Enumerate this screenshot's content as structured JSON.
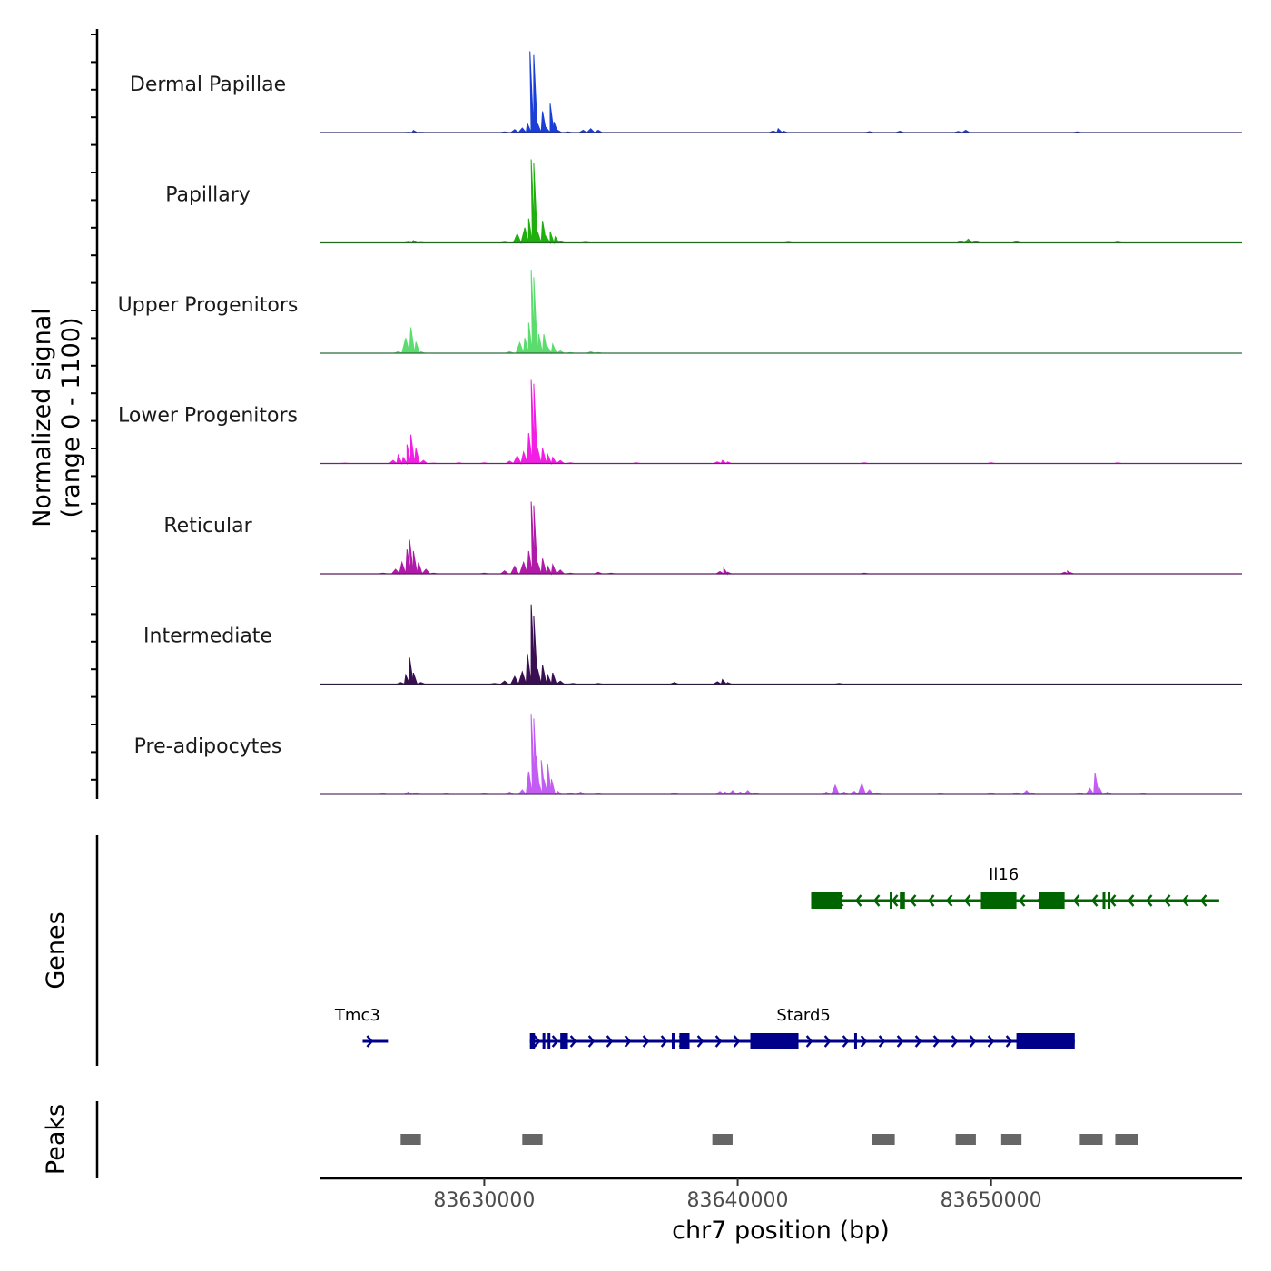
{
  "chart_data": {
    "type": "area",
    "title": "",
    "ylabel_line1": "Normalized signal",
    "ylabel_line2": "(range 0 - 1100)",
    "yrange": [
      0,
      1100
    ],
    "xlabel": "chr7 position (bp)",
    "xlim": [
      83623500,
      83659900
    ],
    "xticks": [
      83630000,
      83640000,
      83650000
    ],
    "xtick_labels": [
      "83630000",
      "83640000",
      "83650000"
    ],
    "tracks": [
      {
        "name": "Dermal Papillae",
        "color": "#1a3fd6",
        "line_color": "#2a2a6a",
        "points": [
          [
            83627000,
            2
          ],
          [
            83627200,
            28
          ],
          [
            83627500,
            2
          ],
          [
            83630800,
            8
          ],
          [
            83631200,
            40
          ],
          [
            83631500,
            60
          ],
          [
            83631700,
            120
          ],
          [
            83631800,
            1070
          ],
          [
            83631950,
            1020
          ],
          [
            83632100,
            120
          ],
          [
            83632300,
            280
          ],
          [
            83632450,
            60
          ],
          [
            83632600,
            380
          ],
          [
            83632750,
            140
          ],
          [
            83632900,
            30
          ],
          [
            83633300,
            8
          ],
          [
            83633900,
            30
          ],
          [
            83634200,
            50
          ],
          [
            83634500,
            30
          ],
          [
            83641400,
            20
          ],
          [
            83641600,
            50
          ],
          [
            83641800,
            20
          ],
          [
            83645200,
            12
          ],
          [
            83646400,
            18
          ],
          [
            83648700,
            14
          ],
          [
            83649000,
            30
          ],
          [
            83653400,
            10
          ]
        ]
      },
      {
        "name": "Papillary",
        "color": "#1faf0f",
        "line_color": "#1f6a1f",
        "points": [
          [
            83627000,
            10
          ],
          [
            83627200,
            30
          ],
          [
            83627500,
            5
          ],
          [
            83630800,
            10
          ],
          [
            83631300,
            120
          ],
          [
            83631600,
            200
          ],
          [
            83631750,
            320
          ],
          [
            83631850,
            1100
          ],
          [
            83631950,
            1050
          ],
          [
            83632100,
            150
          ],
          [
            83632300,
            290
          ],
          [
            83632450,
            80
          ],
          [
            83632600,
            150
          ],
          [
            83632800,
            80
          ],
          [
            83633000,
            20
          ],
          [
            83634000,
            10
          ],
          [
            83642000,
            10
          ],
          [
            83648800,
            20
          ],
          [
            83649100,
            50
          ],
          [
            83649400,
            20
          ],
          [
            83651000,
            15
          ],
          [
            83655000,
            12
          ]
        ]
      },
      {
        "name": "Upper Progenitors",
        "color": "#5cdb6e",
        "line_color": "#2a6a3a",
        "points": [
          [
            83626600,
            20
          ],
          [
            83626900,
            200
          ],
          [
            83627100,
            340
          ],
          [
            83627300,
            150
          ],
          [
            83627500,
            20
          ],
          [
            83631000,
            20
          ],
          [
            83631400,
            140
          ],
          [
            83631600,
            200
          ],
          [
            83631750,
            400
          ],
          [
            83631850,
            1100
          ],
          [
            83631950,
            1000
          ],
          [
            83632150,
            250
          ],
          [
            83632350,
            250
          ],
          [
            83632500,
            80
          ],
          [
            83632700,
            120
          ],
          [
            83633000,
            30
          ],
          [
            83633400,
            10
          ],
          [
            83634200,
            20
          ],
          [
            83634500,
            10
          ]
        ]
      },
      {
        "name": "Lower Progenitors",
        "color": "#f21ee4",
        "line_color": "#6a2a6a",
        "points": [
          [
            83624500,
            5
          ],
          [
            83626400,
            40
          ],
          [
            83626600,
            110
          ],
          [
            83626800,
            80
          ],
          [
            83626950,
            250
          ],
          [
            83627100,
            380
          ],
          [
            83627300,
            200
          ],
          [
            83627600,
            40
          ],
          [
            83628000,
            5
          ],
          [
            83629000,
            8
          ],
          [
            83630000,
            10
          ],
          [
            83631000,
            30
          ],
          [
            83631300,
            100
          ],
          [
            83631550,
            150
          ],
          [
            83631750,
            400
          ],
          [
            83631850,
            1100
          ],
          [
            83631950,
            1050
          ],
          [
            83632100,
            200
          ],
          [
            83632300,
            200
          ],
          [
            83632500,
            120
          ],
          [
            83632700,
            80
          ],
          [
            83633000,
            40
          ],
          [
            83633400,
            10
          ],
          [
            83636000,
            10
          ],
          [
            83639200,
            20
          ],
          [
            83639400,
            40
          ],
          [
            83639600,
            20
          ],
          [
            83645000,
            10
          ],
          [
            83650000,
            8
          ],
          [
            83655000,
            8
          ]
        ]
      },
      {
        "name": "Reticular",
        "color": "#b01aa8",
        "line_color": "#5a1a5a",
        "points": [
          [
            83626000,
            10
          ],
          [
            83626500,
            60
          ],
          [
            83626750,
            150
          ],
          [
            83626950,
            320
          ],
          [
            83627050,
            450
          ],
          [
            83627200,
            300
          ],
          [
            83627400,
            150
          ],
          [
            83627700,
            60
          ],
          [
            83628000,
            10
          ],
          [
            83630000,
            10
          ],
          [
            83630800,
            40
          ],
          [
            83631200,
            100
          ],
          [
            83631550,
            150
          ],
          [
            83631750,
            300
          ],
          [
            83631850,
            950
          ],
          [
            83631950,
            900
          ],
          [
            83632100,
            150
          ],
          [
            83632300,
            200
          ],
          [
            83632500,
            100
          ],
          [
            83632700,
            120
          ],
          [
            83633000,
            50
          ],
          [
            83633400,
            10
          ],
          [
            83634500,
            20
          ],
          [
            83635000,
            10
          ],
          [
            83639300,
            30
          ],
          [
            83639450,
            70
          ],
          [
            83639600,
            20
          ],
          [
            83645000,
            10
          ],
          [
            83652900,
            20
          ],
          [
            83653000,
            40
          ],
          [
            83653100,
            20
          ]
        ]
      },
      {
        "name": "Intermediate",
        "color": "#3a0f52",
        "line_color": "#2a1a3a",
        "points": [
          [
            83626700,
            20
          ],
          [
            83626900,
            120
          ],
          [
            83627050,
            350
          ],
          [
            83627200,
            150
          ],
          [
            83627500,
            20
          ],
          [
            83630400,
            10
          ],
          [
            83630800,
            40
          ],
          [
            83631200,
            100
          ],
          [
            83631500,
            160
          ],
          [
            83631700,
            400
          ],
          [
            83631850,
            1050
          ],
          [
            83631950,
            900
          ],
          [
            83632100,
            200
          ],
          [
            83632300,
            250
          ],
          [
            83632500,
            120
          ],
          [
            83632700,
            150
          ],
          [
            83633000,
            40
          ],
          [
            83633500,
            10
          ],
          [
            83634500,
            10
          ],
          [
            83637500,
            20
          ],
          [
            83639200,
            30
          ],
          [
            83639400,
            60
          ],
          [
            83639600,
            20
          ],
          [
            83644000,
            10
          ]
        ]
      },
      {
        "name": "Pre-adipocytes",
        "color": "#c25cf2",
        "line_color": "#5a3a6a",
        "points": [
          [
            83626000,
            10
          ],
          [
            83627000,
            30
          ],
          [
            83627300,
            20
          ],
          [
            83628500,
            10
          ],
          [
            83630000,
            10
          ],
          [
            83631000,
            30
          ],
          [
            83631500,
            60
          ],
          [
            83631750,
            300
          ],
          [
            83631850,
            1050
          ],
          [
            83631950,
            1000
          ],
          [
            83632050,
            500
          ],
          [
            83632150,
            150
          ],
          [
            83632250,
            450
          ],
          [
            83632350,
            200
          ],
          [
            83632500,
            400
          ],
          [
            83632650,
            200
          ],
          [
            83632900,
            40
          ],
          [
            83633400,
            20
          ],
          [
            83633800,
            30
          ],
          [
            83634500,
            10
          ],
          [
            83637500,
            20
          ],
          [
            83639300,
            40
          ],
          [
            83639500,
            30
          ],
          [
            83639800,
            50
          ],
          [
            83640100,
            30
          ],
          [
            83640400,
            50
          ],
          [
            83640700,
            20
          ],
          [
            83643500,
            30
          ],
          [
            83643850,
            120
          ],
          [
            83644200,
            30
          ],
          [
            83644600,
            40
          ],
          [
            83644900,
            140
          ],
          [
            83645200,
            60
          ],
          [
            83645500,
            20
          ],
          [
            83648000,
            10
          ],
          [
            83650000,
            20
          ],
          [
            83651000,
            20
          ],
          [
            83651400,
            50
          ],
          [
            83651600,
            20
          ],
          [
            83653500,
            20
          ],
          [
            83653900,
            80
          ],
          [
            83654100,
            280
          ],
          [
            83654250,
            100
          ],
          [
            83654600,
            30
          ],
          [
            83656000,
            10
          ]
        ]
      }
    ],
    "genes_label": "Genes",
    "genes": [
      {
        "name": "Il16",
        "color": "#006400",
        "strand": "-",
        "start": 83642900,
        "end": 83659000,
        "label_pos": 83650500,
        "exons": [
          [
            83642900,
            83644100
          ],
          [
            83646000,
            83646100
          ],
          [
            83646400,
            83646600
          ],
          [
            83649600,
            83651000
          ],
          [
            83651900,
            83652900
          ],
          [
            83654400,
            83654500
          ],
          [
            83654600,
            83654700
          ]
        ]
      },
      {
        "name": "Tmc3",
        "color": "#00008b",
        "strand": "+",
        "start": 83625200,
        "end": 83626200,
        "label_pos": 83625000,
        "exons": []
      },
      {
        "name": "Stard5",
        "color": "#00008b",
        "strand": "+",
        "start": 83631800,
        "end": 83653300,
        "label_pos": 83642600,
        "exons": [
          [
            83631800,
            83632000
          ],
          [
            83632300,
            83632400
          ],
          [
            83632500,
            83632600
          ],
          [
            83633000,
            83633300
          ],
          [
            83637400,
            83637500
          ],
          [
            83637700,
            83638100
          ],
          [
            83640500,
            83642400
          ],
          [
            83644600,
            83644700
          ],
          [
            83651000,
            83653300
          ]
        ]
      }
    ],
    "peaks_label": "Peaks",
    "peaks": [
      [
        83626700,
        83627500
      ],
      [
        83631500,
        83632300
      ],
      [
        83639000,
        83639800
      ],
      [
        83645300,
        83646200
      ],
      [
        83648600,
        83649400
      ],
      [
        83650400,
        83651200
      ],
      [
        83653500,
        83654400
      ],
      [
        83654900,
        83655800
      ]
    ]
  }
}
